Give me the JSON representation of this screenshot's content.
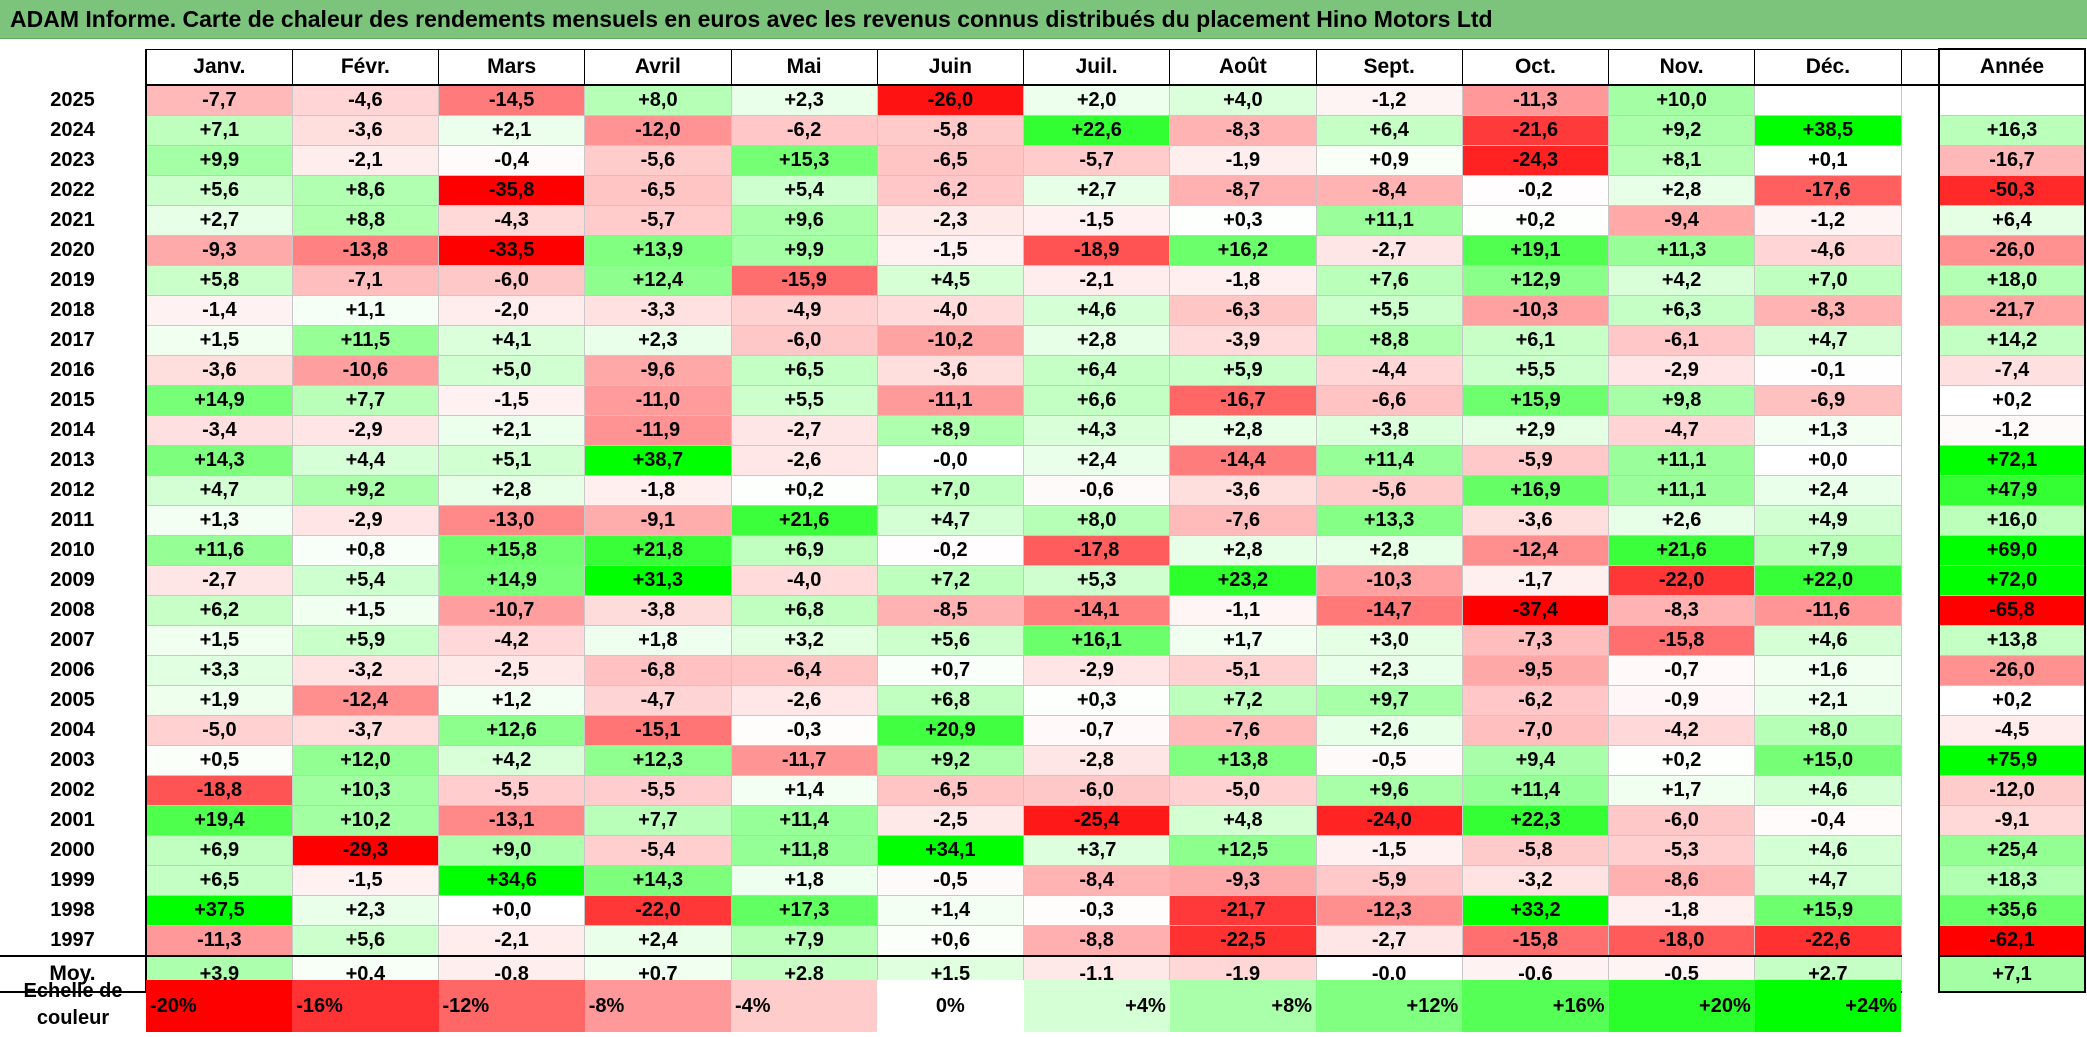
{
  "title": "ADAM Informe. Carte de chaleur des rendements mensuels en euros avec les revenus connus distribués du placement Hino Motors Ltd",
  "months": [
    "Janv.",
    "Févr.",
    "Mars",
    "Avril",
    "Mai",
    "Juin",
    "Juil.",
    "Août",
    "Sept.",
    "Oct.",
    "Nov.",
    "Déc."
  ],
  "annual_header": "Année",
  "avg_label": "Moy.",
  "scale_label": "Echelle de couleur",
  "colors": {
    "title_bg": "#7cc47c",
    "negative": "#ff0000",
    "positive": "#00ff00",
    "neutral": "#ffffff"
  },
  "chart_data": {
    "type": "heatmap",
    "title": "ADAM Informe. Carte de chaleur des rendements mensuels en euros avec les revenus connus distribués du placement Hino Motors Ltd",
    "x": [
      "Janv.",
      "Févr.",
      "Mars",
      "Avril",
      "Mai",
      "Juin",
      "Juil.",
      "Août",
      "Sept.",
      "Oct.",
      "Nov.",
      "Déc."
    ],
    "rows": [
      {
        "year": "2025",
        "values": [
          "-7,7",
          "-4,6",
          "-14,5",
          "+8,0",
          "+2,3",
          "-26,0",
          "+2,0",
          "+4,0",
          "-1,2",
          "-11,3",
          "+10,0",
          ""
        ],
        "annual": ""
      },
      {
        "year": "2024",
        "values": [
          "+7,1",
          "-3,6",
          "+2,1",
          "-12,0",
          "-6,2",
          "-5,8",
          "+22,6",
          "-8,3",
          "+6,4",
          "-21,6",
          "+9,2",
          "+38,5"
        ],
        "annual": "+16,3"
      },
      {
        "year": "2023",
        "values": [
          "+9,9",
          "-2,1",
          "-0,4",
          "-5,6",
          "+15,3",
          "-6,5",
          "-5,7",
          "-1,9",
          "+0,9",
          "-24,3",
          "+8,1",
          "+0,1"
        ],
        "annual": "-16,7"
      },
      {
        "year": "2022",
        "values": [
          "+5,6",
          "+8,6",
          "-35,8",
          "-6,5",
          "+5,4",
          "-6,2",
          "+2,7",
          "-8,7",
          "-8,4",
          "-0,2",
          "+2,8",
          "-17,6"
        ],
        "annual": "-50,3"
      },
      {
        "year": "2021",
        "values": [
          "+2,7",
          "+8,8",
          "-4,3",
          "-5,7",
          "+9,6",
          "-2,3",
          "-1,5",
          "+0,3",
          "+11,1",
          "+0,2",
          "-9,4",
          "-1,2"
        ],
        "annual": "+6,4"
      },
      {
        "year": "2020",
        "values": [
          "-9,3",
          "-13,8",
          "-33,5",
          "+13,9",
          "+9,9",
          "-1,5",
          "-18,9",
          "+16,2",
          "-2,7",
          "+19,1",
          "+11,3",
          "-4,6"
        ],
        "annual": "-26,0"
      },
      {
        "year": "2019",
        "values": [
          "+5,8",
          "-7,1",
          "-6,0",
          "+12,4",
          "-15,9",
          "+4,5",
          "-2,1",
          "-1,8",
          "+7,6",
          "+12,9",
          "+4,2",
          "+7,0"
        ],
        "annual": "+18,0"
      },
      {
        "year": "2018",
        "values": [
          "-1,4",
          "+1,1",
          "-2,0",
          "-3,3",
          "-4,9",
          "-4,0",
          "+4,6",
          "-6,3",
          "+5,5",
          "-10,3",
          "+6,3",
          "-8,3"
        ],
        "annual": "-21,7"
      },
      {
        "year": "2017",
        "values": [
          "+1,5",
          "+11,5",
          "+4,1",
          "+2,3",
          "-6,0",
          "-10,2",
          "+2,8",
          "-3,9",
          "+8,8",
          "+6,1",
          "-6,1",
          "+4,7"
        ],
        "annual": "+14,2"
      },
      {
        "year": "2016",
        "values": [
          "-3,6",
          "-10,6",
          "+5,0",
          "-9,6",
          "+6,5",
          "-3,6",
          "+6,4",
          "+5,9",
          "-4,4",
          "+5,5",
          "-2,9",
          "-0,1"
        ],
        "annual": "-7,4"
      },
      {
        "year": "2015",
        "values": [
          "+14,9",
          "+7,7",
          "-1,5",
          "-11,0",
          "+5,5",
          "-11,1",
          "+6,6",
          "-16,7",
          "-6,6",
          "+15,9",
          "+9,8",
          "-6,9"
        ],
        "annual": "+0,2"
      },
      {
        "year": "2014",
        "values": [
          "-3,4",
          "-2,9",
          "+2,1",
          "-11,9",
          "-2,7",
          "+8,9",
          "+4,3",
          "+2,8",
          "+3,8",
          "+2,9",
          "-4,7",
          "+1,3"
        ],
        "annual": "-1,2"
      },
      {
        "year": "2013",
        "values": [
          "+14,3",
          "+4,4",
          "+5,1",
          "+38,7",
          "-2,6",
          "-0,0",
          "+2,4",
          "-14,4",
          "+11,4",
          "-5,9",
          "+11,1",
          "+0,0"
        ],
        "annual": "+72,1"
      },
      {
        "year": "2012",
        "values": [
          "+4,7",
          "+9,2",
          "+2,8",
          "-1,8",
          "+0,2",
          "+7,0",
          "-0,6",
          "-3,6",
          "-5,6",
          "+16,9",
          "+11,1",
          "+2,4"
        ],
        "annual": "+47,9"
      },
      {
        "year": "2011",
        "values": [
          "+1,3",
          "-2,9",
          "-13,0",
          "-9,1",
          "+21,6",
          "+4,7",
          "+8,0",
          "-7,6",
          "+13,3",
          "-3,6",
          "+2,6",
          "+4,9"
        ],
        "annual": "+16,0"
      },
      {
        "year": "2010",
        "values": [
          "+11,6",
          "+0,8",
          "+15,8",
          "+21,8",
          "+6,9",
          "-0,2",
          "-17,8",
          "+2,8",
          "+2,8",
          "-12,4",
          "+21,6",
          "+7,9"
        ],
        "annual": "+69,0"
      },
      {
        "year": "2009",
        "values": [
          "-2,7",
          "+5,4",
          "+14,9",
          "+31,3",
          "-4,0",
          "+7,2",
          "+5,3",
          "+23,2",
          "-10,3",
          "-1,7",
          "-22,0",
          "+22,0"
        ],
        "annual": "+72,0"
      },
      {
        "year": "2008",
        "values": [
          "+6,2",
          "+1,5",
          "-10,7",
          "-3,8",
          "+6,8",
          "-8,5",
          "-14,1",
          "-1,1",
          "-14,7",
          "-37,4",
          "-8,3",
          "-11,6"
        ],
        "annual": "-65,8"
      },
      {
        "year": "2007",
        "values": [
          "+1,5",
          "+5,9",
          "-4,2",
          "+1,8",
          "+3,2",
          "+5,6",
          "+16,1",
          "+1,7",
          "+3,0",
          "-7,3",
          "-15,8",
          "+4,6"
        ],
        "annual": "+13,8"
      },
      {
        "year": "2006",
        "values": [
          "+3,3",
          "-3,2",
          "-2,5",
          "-6,8",
          "-6,4",
          "+0,7",
          "-2,9",
          "-5,1",
          "+2,3",
          "-9,5",
          "-0,7",
          "+1,6"
        ],
        "annual": "-26,0"
      },
      {
        "year": "2005",
        "values": [
          "+1,9",
          "-12,4",
          "+1,2",
          "-4,7",
          "-2,6",
          "+6,8",
          "+0,3",
          "+7,2",
          "+9,7",
          "-6,2",
          "-0,9",
          "+2,1"
        ],
        "annual": "+0,2"
      },
      {
        "year": "2004",
        "values": [
          "-5,0",
          "-3,7",
          "+12,6",
          "-15,1",
          "-0,3",
          "+20,9",
          "-0,7",
          "-7,6",
          "+2,6",
          "-7,0",
          "-4,2",
          "+8,0"
        ],
        "annual": "-4,5"
      },
      {
        "year": "2003",
        "values": [
          "+0,5",
          "+12,0",
          "+4,2",
          "+12,3",
          "-11,7",
          "+9,2",
          "-2,8",
          "+13,8",
          "-0,5",
          "+9,4",
          "+0,2",
          "+15,0"
        ],
        "annual": "+75,9"
      },
      {
        "year": "2002",
        "values": [
          "-18,8",
          "+10,3",
          "-5,5",
          "-5,5",
          "+1,4",
          "-6,5",
          "-6,0",
          "-5,0",
          "+9,6",
          "+11,4",
          "+1,7",
          "+4,6"
        ],
        "annual": "-12,0"
      },
      {
        "year": "2001",
        "values": [
          "+19,4",
          "+10,2",
          "-13,1",
          "+7,7",
          "+11,4",
          "-2,5",
          "-25,4",
          "+4,8",
          "-24,0",
          "+22,3",
          "-6,0",
          "-0,4"
        ],
        "annual": "-9,1"
      },
      {
        "year": "2000",
        "values": [
          "+6,9",
          "-29,3",
          "+9,0",
          "-5,4",
          "+11,8",
          "+34,1",
          "+3,7",
          "+12,5",
          "-1,5",
          "-5,8",
          "-5,3",
          "+4,6"
        ],
        "annual": "+25,4"
      },
      {
        "year": "1999",
        "values": [
          "+6,5",
          "-1,5",
          "+34,6",
          "+14,3",
          "+1,8",
          "-0,5",
          "-8,4",
          "-9,3",
          "-5,9",
          "-3,2",
          "-8,6",
          "+4,7"
        ],
        "annual": "+18,3"
      },
      {
        "year": "1998",
        "values": [
          "+37,5",
          "+2,3",
          "+0,0",
          "-22,0",
          "+17,3",
          "+1,4",
          "-0,3",
          "-21,7",
          "-12,3",
          "+33,2",
          "-1,8",
          "+15,9"
        ],
        "annual": "+35,6"
      },
      {
        "year": "1997",
        "values": [
          "-11,3",
          "+5,6",
          "-2,1",
          "+2,4",
          "+7,9",
          "+0,6",
          "-8,8",
          "-22,5",
          "-2,7",
          "-15,8",
          "-18,0",
          "-22,6"
        ],
        "annual": "-62,1"
      }
    ],
    "averages": [
      "+3,9",
      "+0,4",
      "-0,8",
      "+0,7",
      "+2,8",
      "+1,5",
      "-1,1",
      "-1,9",
      "-0,0",
      "-0,6",
      "-0,5",
      "+2,7"
    ],
    "average_annual": "+7,1",
    "color_scale": [
      "-20%",
      "-16%",
      "-12%",
      "-8%",
      "-4%",
      "0%",
      "+4%",
      "+8%",
      "+12%",
      "+16%",
      "+20%",
      "+24%"
    ],
    "scale_range": [
      -20,
      24
    ]
  }
}
